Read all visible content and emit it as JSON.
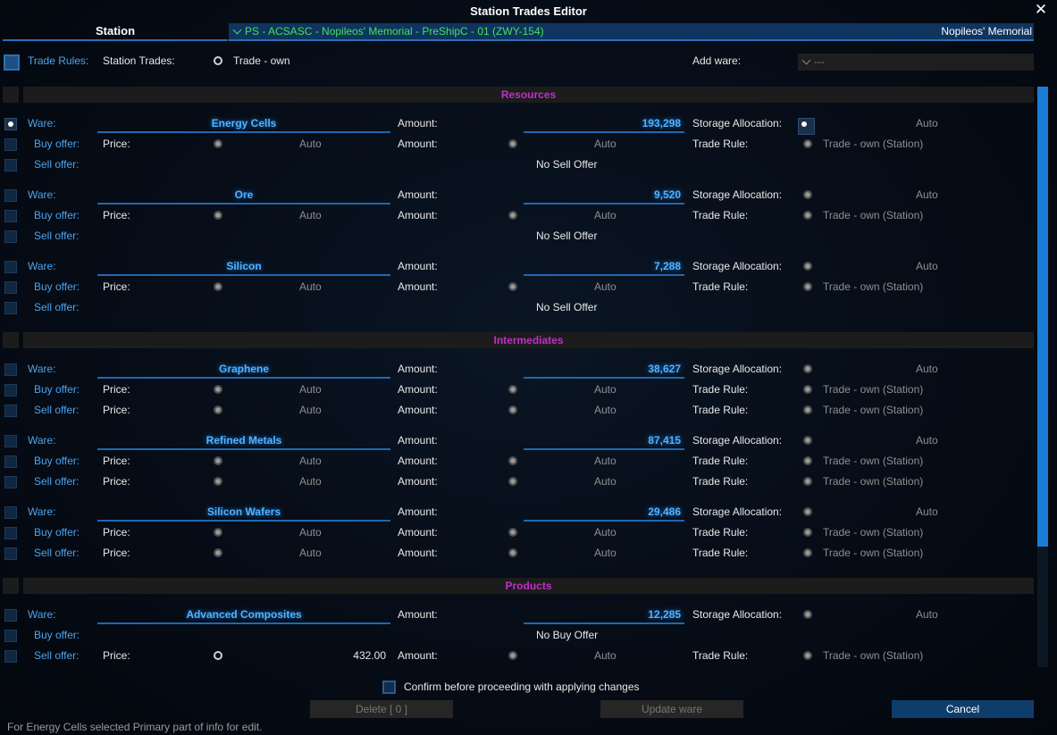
{
  "window": {
    "title": "Station Trades Editor",
    "close_icon": "close-icon"
  },
  "header": {
    "station_tab": "Station",
    "station_selector": "PS - ACSASC - Nopileos' Memorial - PreShipC - 01 (ZWY-154)",
    "station_short": "Nopileos' Memorial"
  },
  "trade_rules": {
    "label": "Trade Rules:",
    "station_trades_label": "Station Trades:",
    "option": "Trade - own",
    "add_ware_label": "Add ware:",
    "add_ware_value": "---"
  },
  "labels": {
    "ware": "Ware:",
    "buy": "Buy offer:",
    "sell": "Sell offer:",
    "price": "Price:",
    "amount": "Amount:",
    "storage": "Storage Allocation:",
    "trade_rule": "Trade Rule:",
    "auto": "Auto",
    "rule_value": "Trade - own (Station)",
    "no_sell": "No Sell Offer",
    "no_buy": "No Buy Offer"
  },
  "sections": [
    {
      "title": "Resources"
    },
    {
      "title": "Intermediates"
    },
    {
      "title": "Products"
    }
  ],
  "wares": [
    {
      "name": "Energy Cells",
      "amount": "193,298"
    },
    {
      "name": "Ore",
      "amount": "9,520"
    },
    {
      "name": "Silicon",
      "amount": "7,288"
    },
    {
      "name": "Graphene",
      "amount": "38,627"
    },
    {
      "name": "Refined Metals",
      "amount": "87,415"
    },
    {
      "name": "Silicon Wafers",
      "amount": "29,486"
    },
    {
      "name": "Advanced Composites",
      "amount": "12,285",
      "sell_price": "432.00"
    }
  ],
  "footer": {
    "confirm_label": "Confirm before proceeding with applying changes",
    "delete_button": "Delete [ 0 ]",
    "update_button": "Update ware",
    "cancel_button": "Cancel",
    "note": "For Energy Cells selected Primary part of info for edit."
  },
  "colors": {
    "accent_blue": "#4ba3ef",
    "section_title": "#c02fc8",
    "station_name_green": "#47e05a",
    "scroll_thumb": "#1a7cd6"
  }
}
